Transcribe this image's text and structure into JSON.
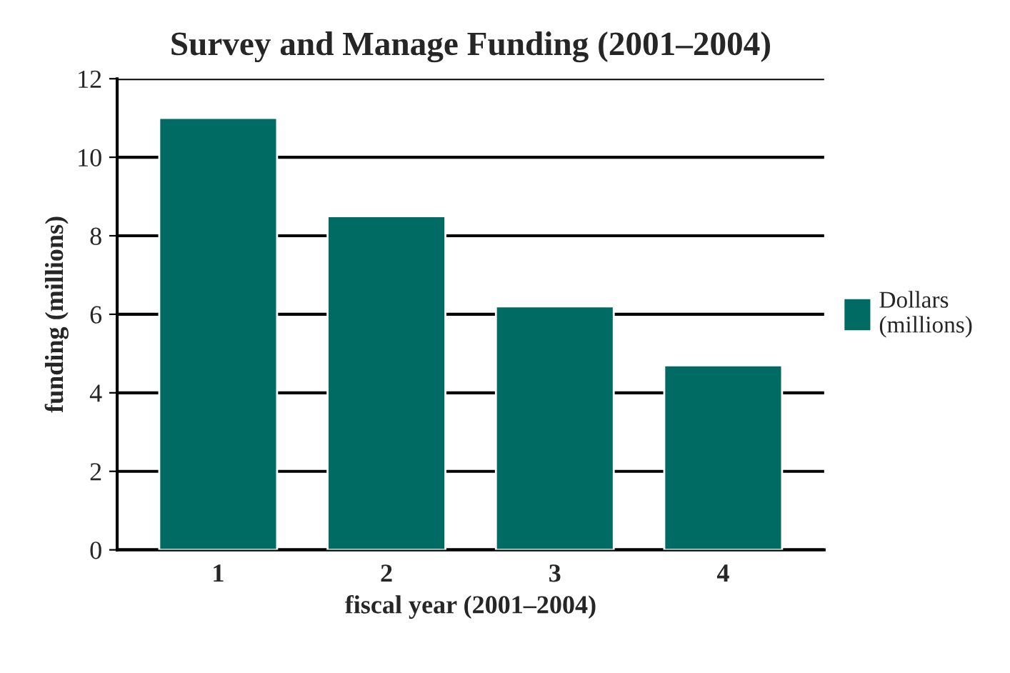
{
  "chart_data": {
    "type": "bar",
    "title": "Survey and Manage Funding (2001–2004)",
    "xlabel": "fiscal year (2001–2004)",
    "ylabel": "funding (millions)",
    "categories": [
      "1",
      "2",
      "3",
      "4"
    ],
    "series": [
      {
        "name": "Dollars\n(millions)",
        "color": "#006b63",
        "values": [
          11.0,
          8.5,
          6.2,
          4.7
        ]
      }
    ],
    "ylim": [
      0,
      12
    ],
    "yticks": [
      0,
      2,
      4,
      6,
      8,
      10,
      12
    ],
    "grid": "y",
    "legend": "right"
  }
}
